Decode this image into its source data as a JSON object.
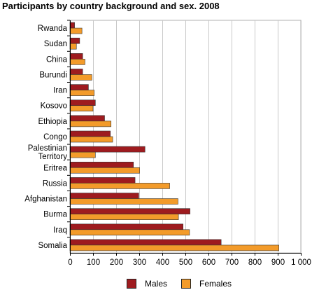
{
  "chart_data": {
    "type": "bar",
    "orientation": "horizontal",
    "title": "Participants by country background and sex. 2008",
    "categories": [
      "Rwanda",
      "Sudan",
      "China",
      "Burundi",
      "Iran",
      "Kosovo",
      "Ethiopia",
      "Congo",
      "Palestinian Territory",
      "Eritrea",
      "Russia",
      "Afghanistan",
      "Burma",
      "Iraq",
      "Somalia"
    ],
    "category_lines": [
      [
        "Rwanda"
      ],
      [
        "Sudan"
      ],
      [
        "China"
      ],
      [
        "Burundi"
      ],
      [
        "Iran"
      ],
      [
        "Kosovo"
      ],
      [
        "Ethiopia"
      ],
      [
        "Congo"
      ],
      [
        "Palestinian",
        "Territory"
      ],
      [
        "Eritrea"
      ],
      [
        "Russia"
      ],
      [
        "Afghanistan"
      ],
      [
        "Burma"
      ],
      [
        "Iraq"
      ],
      [
        "Somalia"
      ]
    ],
    "series": [
      {
        "name": "Males",
        "color": "#9e1b1f",
        "values": [
          20,
          42,
          55,
          55,
          80,
          110,
          150,
          175,
          325,
          275,
          282,
          298,
          520,
          490,
          655
        ]
      },
      {
        "name": "Females",
        "color": "#f39b2a",
        "values": [
          52,
          28,
          65,
          95,
          105,
          100,
          178,
          185,
          110,
          302,
          432,
          468,
          470,
          518,
          905
        ]
      }
    ],
    "xlim": [
      0,
      1000
    ],
    "xticks": [
      0,
      100,
      200,
      300,
      400,
      500,
      600,
      700,
      800,
      900,
      1000
    ],
    "xtick_labels": [
      "0",
      "100",
      "200",
      "300",
      "400",
      "500",
      "600",
      "700",
      "800",
      "900",
      "1 000"
    ],
    "xlabel": "",
    "ylabel": "",
    "grid": "vertical",
    "legend": "bottom"
  }
}
